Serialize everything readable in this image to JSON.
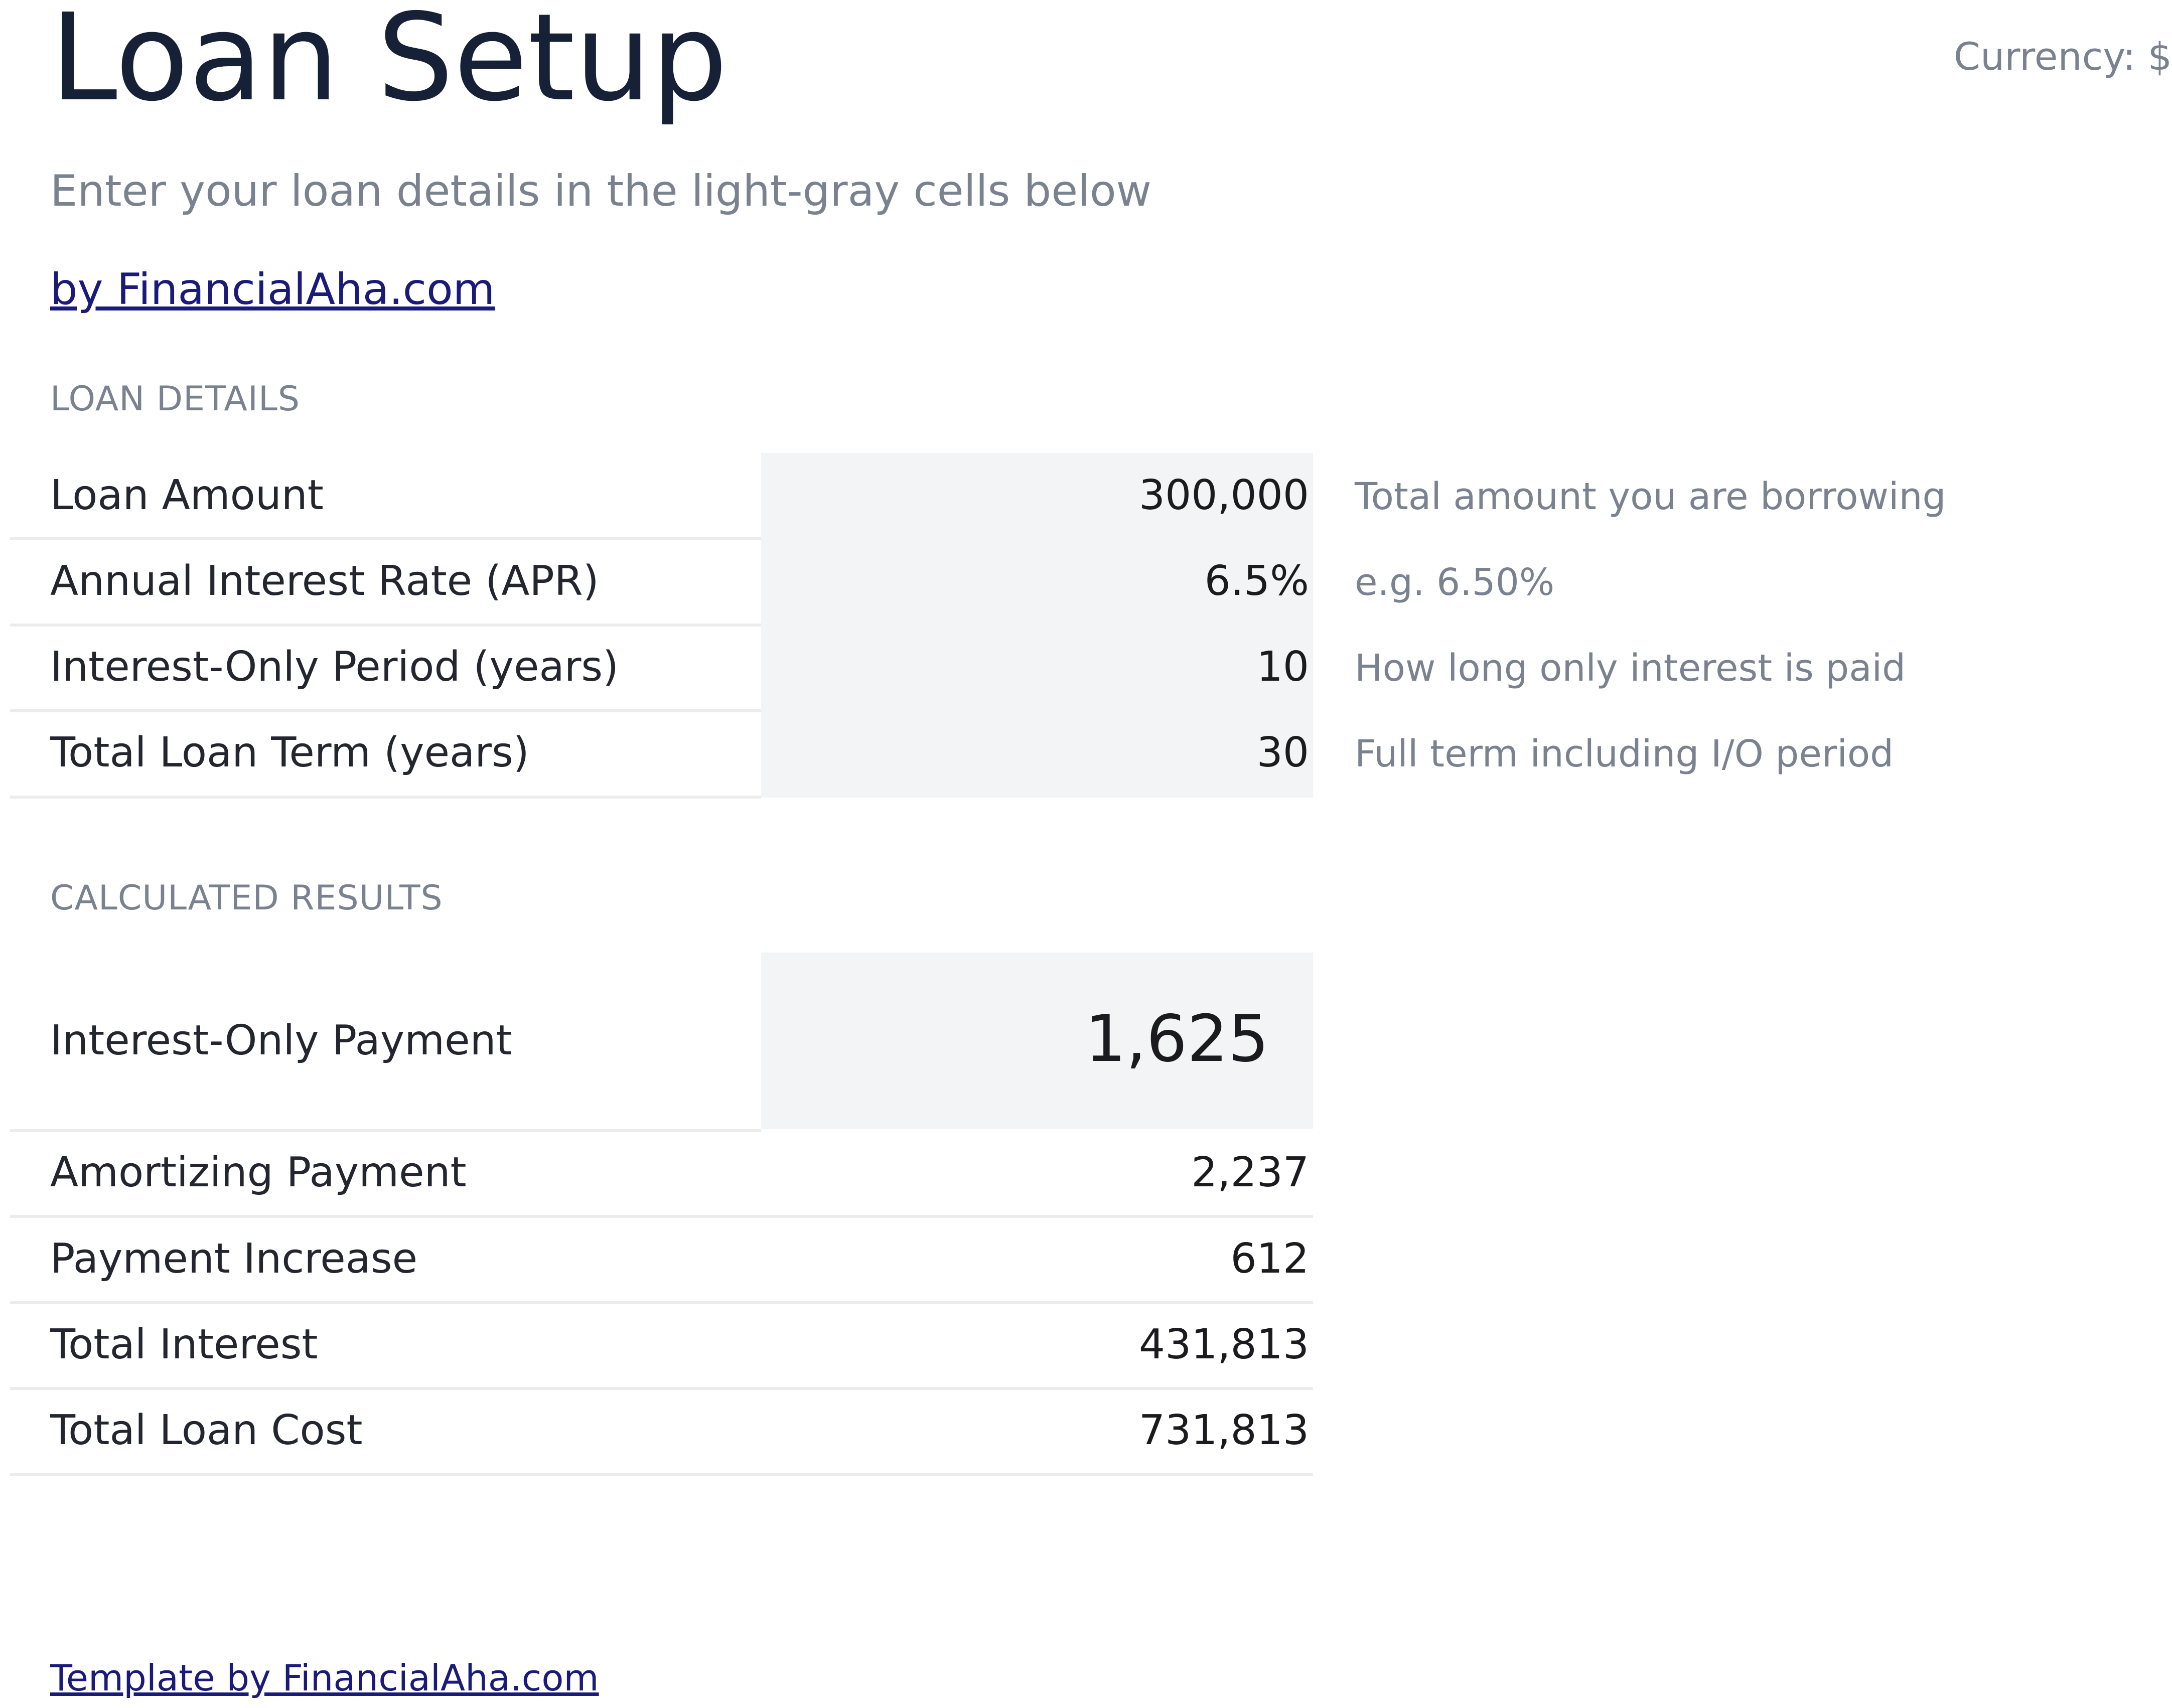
{
  "header": {
    "title": "Loan Setup",
    "currency": "Currency: $",
    "subtitle": "Enter your loan details in the light-gray cells below",
    "byline": "by FinancialAha.com"
  },
  "loan_details": {
    "heading": "LOAN DETAILS",
    "rows": [
      {
        "label": "Loan Amount",
        "value": "300,000",
        "hint": "Total amount you are borrowing"
      },
      {
        "label": "Annual Interest Rate (APR)",
        "value": "6.5%",
        "hint": "e.g. 6.50%"
      },
      {
        "label": "Interest-Only Period (years)",
        "value": "10",
        "hint": "How long only interest is paid"
      },
      {
        "label": "Total Loan Term (years)",
        "value": "30",
        "hint": "Full term including I/O period"
      }
    ]
  },
  "results": {
    "heading": "CALCULATED RESULTS",
    "primary": {
      "label": "Interest-Only Payment",
      "value": "1,625"
    },
    "rows": [
      {
        "label": "Amortizing Payment",
        "value": "2,237"
      },
      {
        "label": "Payment Increase",
        "value": "612"
      },
      {
        "label": "Total Interest",
        "value": "431,813"
      },
      {
        "label": "Total Loan Cost",
        "value": "731,813"
      }
    ]
  },
  "footer": {
    "link": "Template by FinancialAha.com"
  },
  "colors": {
    "title": "#162138",
    "muted": "#7a8290",
    "link": "#1a1a7a",
    "input_fill": "#f3f4f6",
    "divider": "#ececec"
  }
}
